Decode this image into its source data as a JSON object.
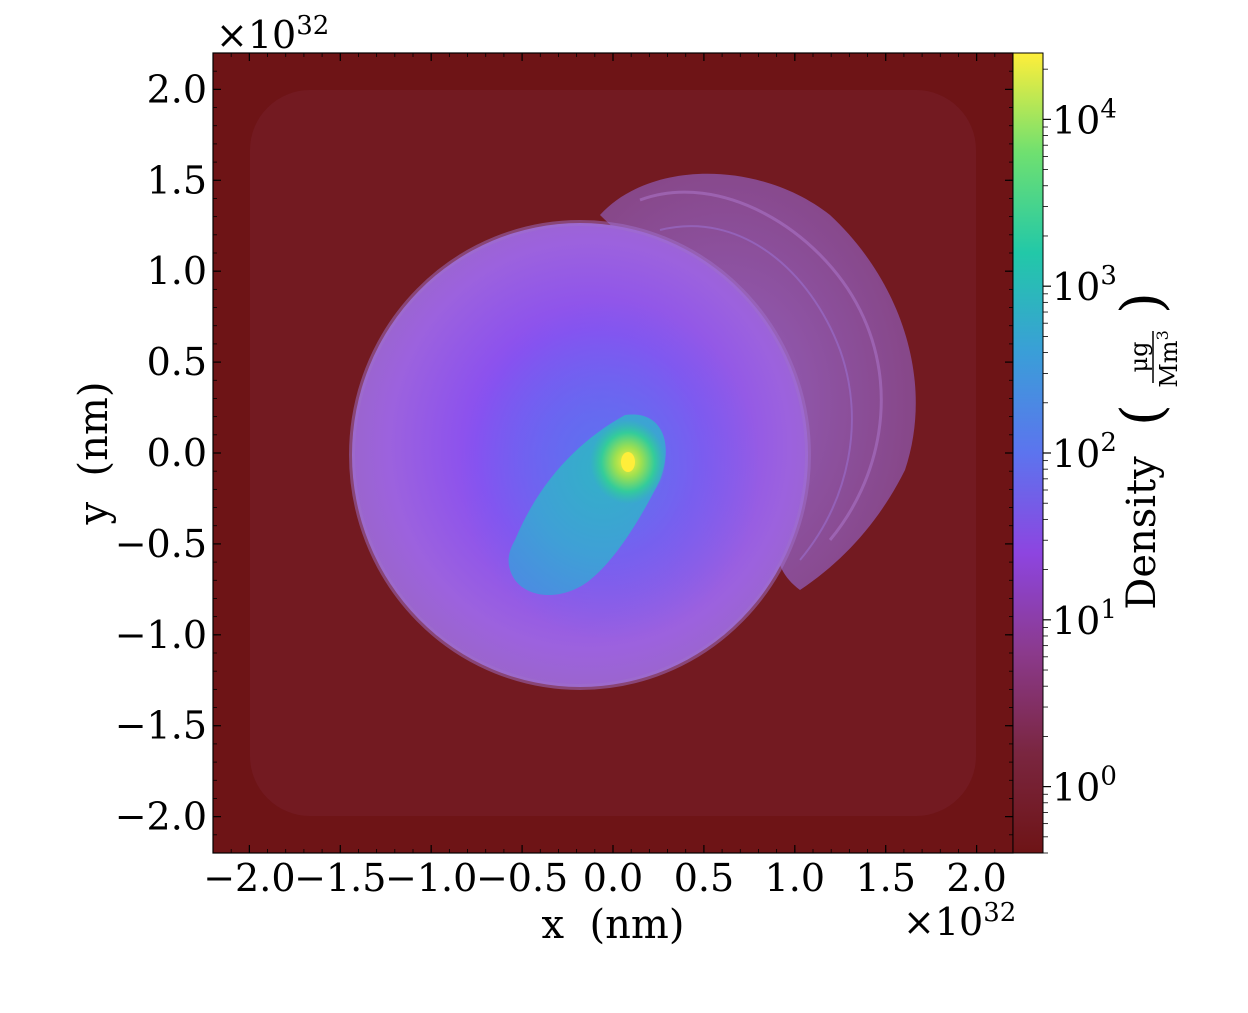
{
  "chart_data": {
    "type": "heatmap",
    "title": "",
    "xlabel": "x  (nm)",
    "ylabel": "y  (nm)",
    "x_multiplier": "×10",
    "x_multiplier_exp": "32",
    "y_multiplier": "×10",
    "y_multiplier_exp": "32",
    "xlim": [
      -2.2,
      2.2
    ],
    "ylim": [
      -2.2,
      2.2
    ],
    "xticks": [
      -2.0,
      -1.5,
      -1.0,
      -0.5,
      0.0,
      0.5,
      1.0,
      1.5,
      2.0
    ],
    "yticks": [
      -2.0,
      -1.5,
      -1.0,
      -0.5,
      0.0,
      0.5,
      1.0,
      1.5,
      2.0
    ],
    "xtick_labels": [
      "−2.0",
      "−1.5",
      "−1.0",
      "−0.5",
      "0.0",
      "0.5",
      "1.0",
      "1.5",
      "2.0"
    ],
    "ytick_labels": [
      "−2.0",
      "−1.5",
      "−1.0",
      "−0.5",
      "0.0",
      "0.5",
      "1.0",
      "1.5",
      "2.0"
    ],
    "colorbar": {
      "label": "Density",
      "unit_numerator": "μg",
      "unit_denominator": "Mm",
      "unit_denominator_exp": "3",
      "scale": "log",
      "range": [
        0.4,
        25000
      ],
      "ticks": [
        1,
        10,
        100,
        1000,
        10000
      ],
      "tick_bases": [
        "10",
        "10",
        "10",
        "10",
        "10"
      ],
      "tick_exponents": [
        "0",
        "1",
        "2",
        "3",
        "4"
      ],
      "colormap": [
        "#6e1416",
        "#7a2640",
        "#8b3a8c",
        "#8d45e0",
        "#5c74ee",
        "#3a9ed8",
        "#22c8a8",
        "#6fe070",
        "#ffee3a"
      ]
    },
    "features": [
      {
        "name": "shell",
        "center": [
          -0.15,
          -0.15
        ],
        "radius": 1.2,
        "level": 4
      },
      {
        "name": "outer-arc-shell",
        "center": [
          0.75,
          0.6
        ],
        "radius": 0.95,
        "level": 3
      },
      {
        "name": "central-plume",
        "center": [
          -0.35,
          -0.5
        ],
        "level": 200
      },
      {
        "name": "core",
        "center": [
          0.08,
          -0.05
        ],
        "level": 20000
      }
    ]
  }
}
